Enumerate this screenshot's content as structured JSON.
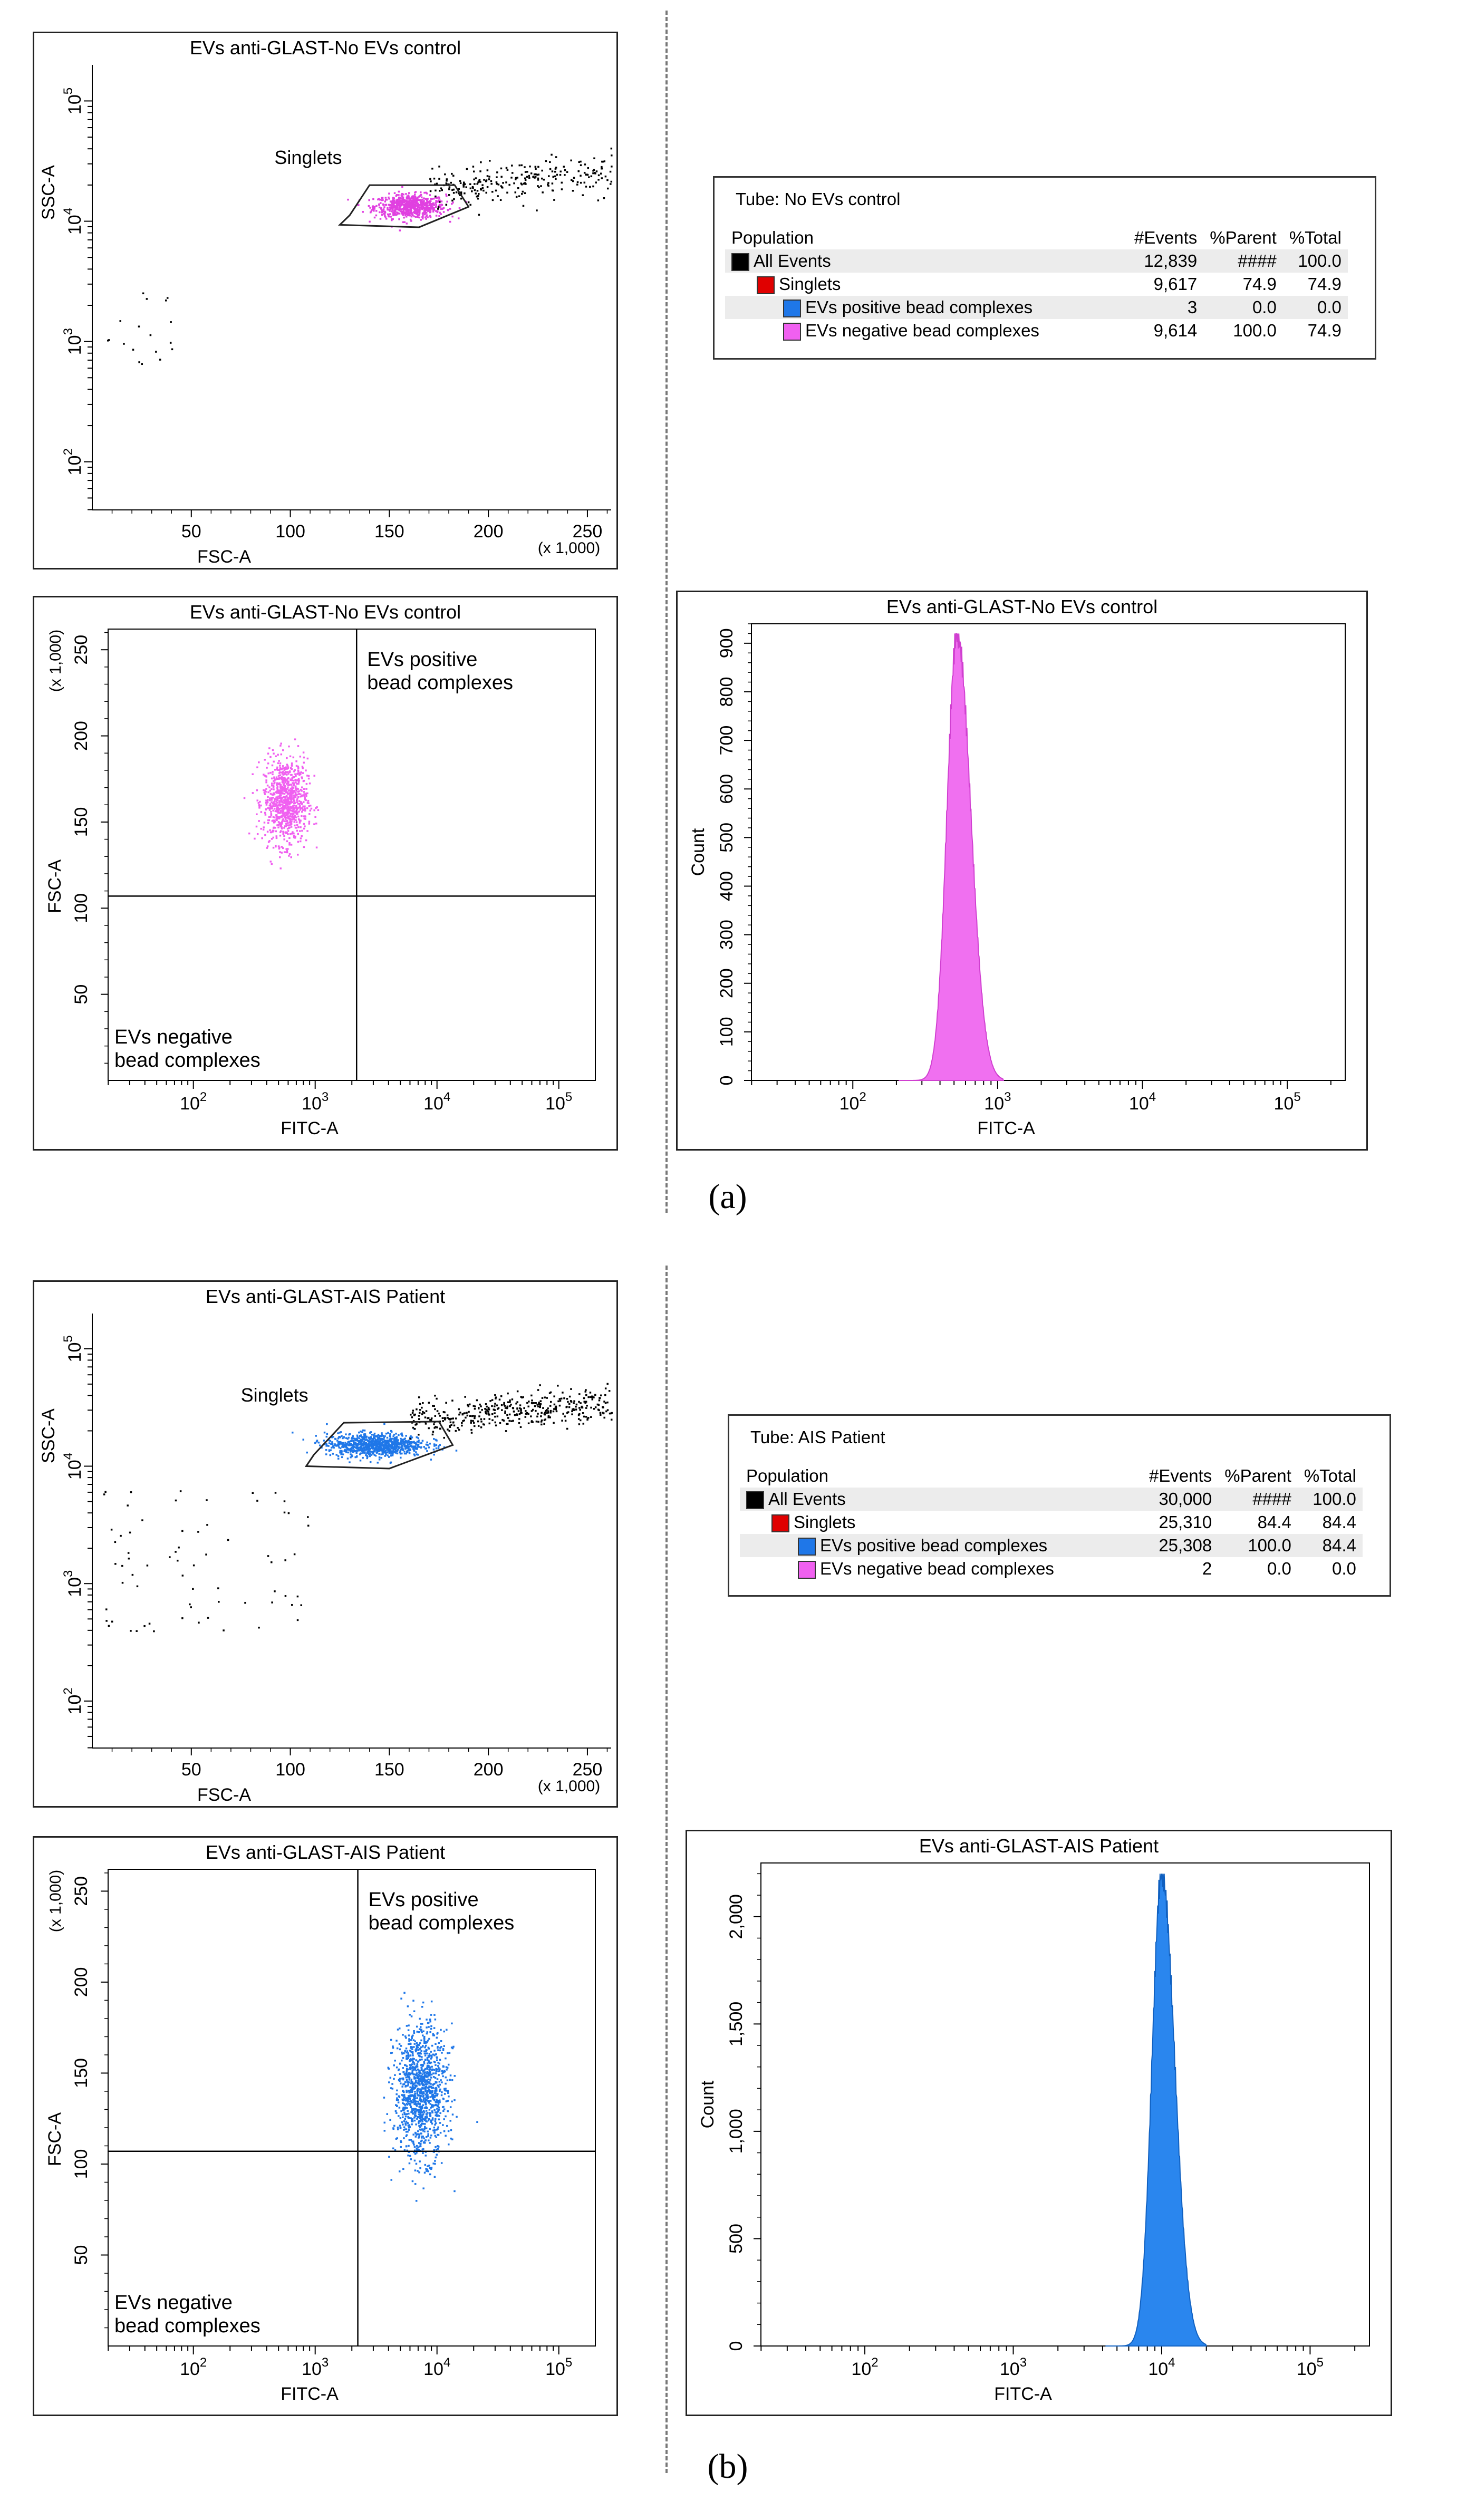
{
  "figure": {
    "label_a": "(a)",
    "label_b": "(b)"
  },
  "tables": [
    {
      "tube": "Tube:  No EVs control",
      "headers": [
        "Population",
        "#Events",
        "%Parent",
        "%Total"
      ],
      "rows": [
        {
          "name": "All Events",
          "events": "12,839",
          "parent": "####",
          "total": "100.0",
          "color": "#000000"
        },
        {
          "name": "Singlets",
          "events": "9,617",
          "parent": "74.9",
          "total": "74.9",
          "color": "#e00000"
        },
        {
          "name": "EVs positive bead complexes",
          "events": "3",
          "parent": "0.0",
          "total": "0.0",
          "color": "#1f77e8"
        },
        {
          "name": "EVs negative bead complexes",
          "events": "9,614",
          "parent": "100.0",
          "total": "74.9",
          "color": "#f060f0"
        }
      ]
    },
    {
      "tube": "Tube:  AIS Patient",
      "headers": [
        "Population",
        "#Events",
        "%Parent",
        "%Total"
      ],
      "rows": [
        {
          "name": "All Events",
          "events": "30,000",
          "parent": "####",
          "total": "100.0",
          "color": "#000000"
        },
        {
          "name": "Singlets",
          "events": "25,310",
          "parent": "84.4",
          "total": "84.4",
          "color": "#e00000"
        },
        {
          "name": "EVs positive bead complexes",
          "events": "25,308",
          "parent": "100.0",
          "total": "84.4",
          "color": "#1f77e8"
        },
        {
          "name": "EVs negative bead complexes",
          "events": "2",
          "parent": "0.0",
          "total": "0.0",
          "color": "#f060f0"
        }
      ]
    }
  ],
  "chart_data": [
    {
      "type": "scatter",
      "id": "a1",
      "title": "EVs anti-GLAST-No EVs control",
      "xlabel": "FSC-A",
      "ylabel": "SSC-A",
      "x_multiplier": "(x 1,000)",
      "x_ticks": [
        "50",
        "100",
        "150",
        "200",
        "250"
      ],
      "y_ticks": [
        "10",
        "10",
        "10",
        "10"
      ],
      "y_exps": [
        "2",
        "3",
        "4",
        "5"
      ],
      "xlim": [
        0,
        262
      ],
      "ylim_log10": [
        1.6,
        5.3
      ],
      "gate_label": "Singlets",
      "gate_polygon": [
        [
          130,
          4.05
        ],
        [
          140,
          4.3
        ],
        [
          183,
          4.3
        ],
        [
          190,
          4.12
        ],
        [
          165,
          3.95
        ],
        [
          125,
          3.97
        ]
      ],
      "point_color": "#e040e0",
      "clusters": [
        {
          "name": "singlets",
          "color": "#e040e0",
          "x": [
            140,
            180
          ],
          "y_log10": [
            4.02,
            4.24
          ],
          "count": 700
        },
        {
          "name": "doublet-tail",
          "color": "#000000",
          "x": [
            170,
            262
          ],
          "y_log10": [
            4.05,
            4.5
          ],
          "count": 260
        },
        {
          "name": "debris",
          "color": "#000000",
          "x": [
            5,
            40
          ],
          "y_log10": [
            2.8,
            3.5
          ],
          "count": 18
        }
      ]
    },
    {
      "type": "scatter",
      "id": "a2",
      "title": "EVs anti-GLAST-No EVs control",
      "xlabel": "FITC-A",
      "ylabel": "FSC-A",
      "y_multiplier": "(x 1,000)",
      "x_ticks": [
        "10",
        "10",
        "10",
        "10"
      ],
      "x_exps": [
        "2",
        "3",
        "4",
        "5"
      ],
      "y_ticks": [
        "50",
        "100",
        "150",
        "200",
        "250"
      ],
      "xlim_log10": [
        1.3,
        5.3
      ],
      "ylim": [
        0,
        262
      ],
      "quadrant_x_log10": 3.34,
      "quadrant_y": 107,
      "positive_label": [
        "EVs positive",
        "bead complexes"
      ],
      "negative_label": [
        "EVs negative",
        "bead complexes"
      ],
      "clusters": [
        {
          "name": "negative",
          "color": "#f060f0",
          "x_log10": [
            2.55,
            2.95
          ],
          "y": [
            135,
            190
          ],
          "count": 900
        }
      ]
    },
    {
      "type": "area",
      "id": "a3",
      "title": "EVs anti-GLAST-No EVs control",
      "xlabel": "FITC-A",
      "ylabel": "Count",
      "x_ticks": [
        "10",
        "10",
        "10",
        "10"
      ],
      "x_exps": [
        "2",
        "3",
        "4",
        "5"
      ],
      "y_ticks": [
        "0",
        "100",
        "200",
        "300",
        "400",
        "500",
        "600",
        "700",
        "800",
        "900"
      ],
      "xlim_log10": [
        1.3,
        5.4
      ],
      "ylim": [
        0,
        940
      ],
      "peak_log10": 2.72,
      "peak_count": 920,
      "width_log10": 0.08,
      "color": "#f070f0",
      "edge": "#d040d0"
    },
    {
      "type": "scatter",
      "id": "b1",
      "title": "EVs anti-GLAST-AIS Patient",
      "xlabel": "FSC-A",
      "ylabel": "SSC-A",
      "x_multiplier": "(x 1,000)",
      "x_ticks": [
        "50",
        "100",
        "150",
        "200",
        "250"
      ],
      "y_ticks": [
        "10",
        "10",
        "10",
        "10"
      ],
      "y_exps": [
        "2",
        "3",
        "4",
        "5"
      ],
      "xlim": [
        0,
        262
      ],
      "ylim_log10": [
        1.6,
        5.3
      ],
      "gate_label": "Singlets",
      "gate_polygon": [
        [
          112,
          4.1
        ],
        [
          127,
          4.37
        ],
        [
          175,
          4.38
        ],
        [
          182,
          4.18
        ],
        [
          150,
          3.98
        ],
        [
          108,
          4.0
        ]
      ],
      "clusters": [
        {
          "name": "singlets",
          "color": "#1f77e8",
          "x": [
            115,
            170
          ],
          "y_log10": [
            4.08,
            4.3
          ],
          "count": 900
        },
        {
          "name": "doublet-tail",
          "color": "#000000",
          "x": [
            160,
            262
          ],
          "y_log10": [
            4.2,
            4.6
          ],
          "count": 420
        },
        {
          "name": "debris",
          "color": "#000000",
          "x": [
            5,
            110
          ],
          "y_log10": [
            2.6,
            3.8
          ],
          "count": 70
        }
      ]
    },
    {
      "type": "scatter",
      "id": "b2",
      "title": "EVs anti-GLAST-AIS Patient",
      "xlabel": "FITC-A",
      "ylabel": "FSC-A",
      "y_multiplier": "(x 1,000)",
      "x_ticks": [
        "10",
        "10",
        "10",
        "10"
      ],
      "x_exps": [
        "2",
        "3",
        "4",
        "5"
      ],
      "y_ticks": [
        "50",
        "100",
        "150",
        "200",
        "250"
      ],
      "xlim_log10": [
        1.3,
        5.3
      ],
      "ylim": [
        0,
        262
      ],
      "quadrant_x_log10": 3.35,
      "quadrant_y": 107,
      "positive_label": [
        "EVs positive",
        "bead complexes"
      ],
      "negative_label": [
        "EVs negative",
        "bead complexes"
      ],
      "clusters": [
        {
          "name": "positive",
          "color": "#1f77e8",
          "x_log10": [
            3.62,
            4.1
          ],
          "y": [
            100,
            180
          ],
          "count": 1200
        }
      ]
    },
    {
      "type": "area",
      "id": "b3",
      "title": "EVs anti-GLAST-AIS Patient",
      "xlabel": "FITC-A",
      "ylabel": "Count",
      "x_ticks": [
        "10",
        "10",
        "10",
        "10"
      ],
      "x_exps": [
        "2",
        "3",
        "4",
        "5"
      ],
      "y_ticks": [
        "0",
        "500",
        "1,000",
        "1,500",
        "2,000"
      ],
      "xlim_log10": [
        1.3,
        5.4
      ],
      "ylim": [
        0,
        2250
      ],
      "peak_log10": 4.0,
      "peak_count": 2200,
      "width_log10": 0.075,
      "color": "#2a86ee",
      "edge": "#1060c0"
    }
  ]
}
